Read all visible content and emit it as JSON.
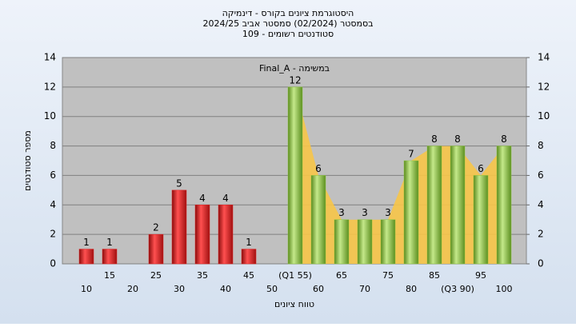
{
  "chart_data": {
    "type": "bar",
    "title": "היסטוגרמת ציונים בקורס - דינמיקה",
    "subtitle": "בסמסטר (02/2024) סמסטר אביב 2024/25",
    "subtitle2": "סטודנטים רשומים - 109",
    "annotation": "במשימה - Final_A",
    "x_label": "טווח ציונים",
    "y_label": "מספר סטודנטים",
    "categories": [
      "10",
      "15",
      "20",
      "25",
      "30",
      "35",
      "40",
      "45",
      "50",
      "(Q1 55)",
      "60",
      "65",
      "70",
      "75",
      "80",
      "85",
      "(Q3 90)",
      "95",
      "100"
    ],
    "values": [
      1,
      1,
      0,
      2,
      5,
      4,
      4,
      1,
      0,
      12,
      6,
      3,
      3,
      3,
      7,
      8,
      8,
      6,
      8
    ],
    "colors": {
      "fail": "#e02020",
      "pass": "#8cc63f",
      "area": "#f7c548"
    },
    "ylim": [
      0,
      14
    ],
    "yticks": [
      0,
      2,
      4,
      6,
      8,
      10,
      12,
      14
    ],
    "y2lim": [
      0,
      14
    ],
    "y2ticks": [
      0,
      2,
      4,
      6,
      8,
      10,
      12,
      14
    ],
    "grid": true
  }
}
